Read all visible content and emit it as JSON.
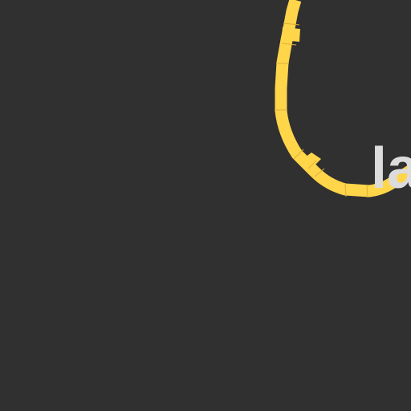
{
  "map": {
    "background_color": "#303030",
    "road": {
      "name": "",
      "color": "#ffd54a",
      "segment_divider_color": "#d9b23a"
    },
    "place_label": {
      "text": "la",
      "color": "#dcdcdc"
    }
  }
}
